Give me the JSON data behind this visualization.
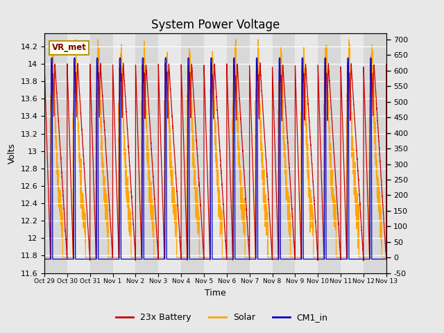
{
  "title": "System Power Voltage",
  "xlabel": "Time",
  "ylabel_left": "Volts",
  "ylim_left": [
    11.6,
    14.35
  ],
  "ylim_right": [
    -50,
    720
  ],
  "yticks_left": [
    11.6,
    11.8,
    12.0,
    12.2,
    12.4,
    12.6,
    12.8,
    13.0,
    13.2,
    13.4,
    13.6,
    13.8,
    14.0,
    14.2
  ],
  "yticks_right": [
    -50,
    0,
    50,
    100,
    150,
    200,
    250,
    300,
    350,
    400,
    450,
    500,
    550,
    600,
    650,
    700
  ],
  "xtick_labels": [
    "Oct 29",
    "Oct 30",
    "Oct 31",
    "Nov 1",
    "Nov 2",
    "Nov 3",
    "Nov 4",
    "Nov 5",
    "Nov 6",
    "Nov 7",
    "Nov 8",
    "Nov 9",
    "Nov 10",
    "Nov 11",
    "Nov 12",
    "Nov 13"
  ],
  "color_battery": "#cc0000",
  "color_solar": "#ffa500",
  "color_cm1": "#0000cc",
  "bg_color": "#e8e8e8",
  "band_light": "#e8e8e8",
  "band_dark": "#d8d8d8",
  "grid_color": "#ffffff",
  "legend_battery": "23x Battery",
  "legend_solar": "Solar",
  "legend_cm1": "CM1_in",
  "annotation_text": "VR_met",
  "annotation_box_edgecolor": "#b8960c",
  "annotation_box_facecolor": "#fffff0",
  "title_fontsize": 12,
  "label_fontsize": 9,
  "axis_fontsize": 8,
  "legend_fontsize": 9
}
